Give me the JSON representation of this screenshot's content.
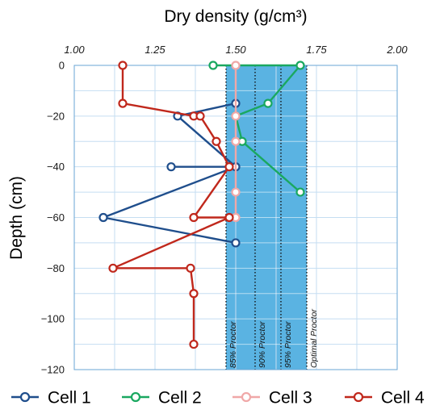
{
  "chart_data": {
    "type": "line",
    "xlabel": "Dry density (g/cm³)",
    "ylabel": "Depth (cm)",
    "xlim": [
      1.0,
      2.0
    ],
    "ylim": [
      -120,
      0
    ],
    "x_ticks": [
      "1.00",
      "1.25",
      "1.50",
      "1.75",
      "2.00"
    ],
    "y_ticks": [
      "0",
      "−20",
      "−40",
      "−60",
      "−80",
      "−100",
      "−120"
    ],
    "x_axis_position": "top",
    "grid": true,
    "legend_position": "bottom",
    "shaded_band": {
      "from": 1.47,
      "to": 1.72,
      "color": "#5ab3e2"
    },
    "reference_lines": [
      {
        "x": 1.47,
        "label": "85% Proctor"
      },
      {
        "x": 1.56,
        "label": "90% Proctor"
      },
      {
        "x": 1.64,
        "label": "95% Proctor"
      },
      {
        "x": 1.72,
        "label": "Optimal Proctor"
      }
    ],
    "series": [
      {
        "name": "Cell 1",
        "color": "#1f4e8c",
        "points": [
          [
            1.5,
            -15
          ],
          [
            1.32,
            -20
          ],
          [
            1.5,
            -40
          ],
          [
            1.3,
            -40
          ],
          [
            1.5,
            -40
          ],
          [
            1.09,
            -60
          ],
          [
            1.5,
            -70
          ]
        ]
      },
      {
        "name": "Cell 2",
        "color": "#1aa860",
        "points": [
          [
            1.43,
            0
          ],
          [
            1.7,
            0
          ],
          [
            1.6,
            -15
          ],
          [
            1.5,
            -20
          ],
          [
            1.52,
            -30
          ],
          [
            1.7,
            -50
          ]
        ]
      },
      {
        "name": "Cell 3",
        "color": "#f0a8a8",
        "points": [
          [
            1.5,
            0
          ],
          [
            1.5,
            -20
          ],
          [
            1.5,
            -30
          ],
          [
            1.5,
            -50
          ],
          [
            1.5,
            -60
          ]
        ]
      },
      {
        "name": "Cell 4",
        "color": "#c0281c",
        "points": [
          [
            1.15,
            0
          ],
          [
            1.15,
            -15
          ],
          [
            1.37,
            -20
          ],
          [
            1.39,
            -20
          ],
          [
            1.44,
            -30
          ],
          [
            1.48,
            -40
          ],
          [
            1.37,
            -60
          ],
          [
            1.48,
            -60
          ],
          [
            1.12,
            -80
          ],
          [
            1.36,
            -80
          ],
          [
            1.37,
            -90
          ],
          [
            1.37,
            -110
          ]
        ]
      }
    ]
  }
}
